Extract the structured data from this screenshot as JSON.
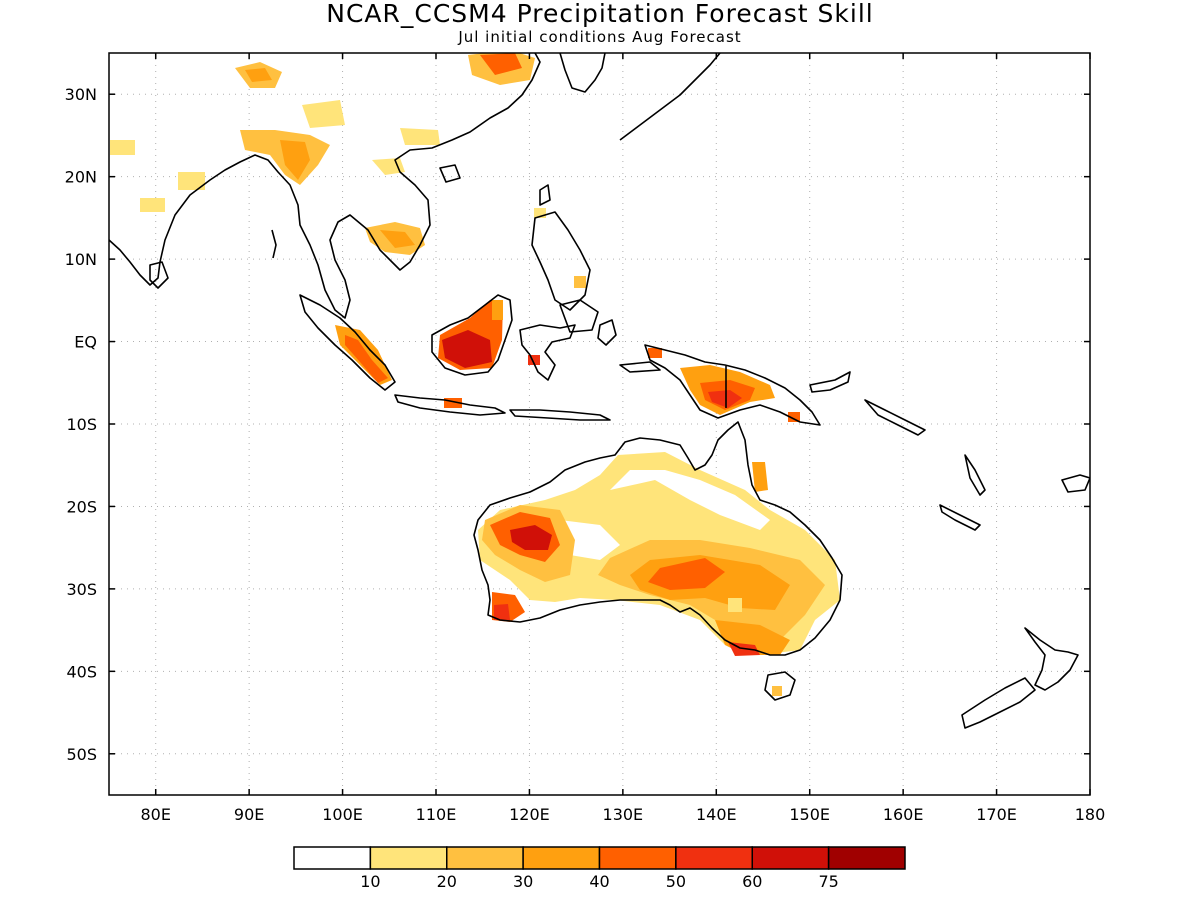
{
  "title": "NCAR_CCSM4 Precipitation Forecast Skill",
  "subtitle": "Jul initial conditions  Aug Forecast",
  "map": {
    "lon_range": [
      75,
      180
    ],
    "lat_range": [
      -55,
      35
    ],
    "lat_labels": [
      "30N",
      "20N",
      "10N",
      "EQ",
      "10S",
      "20S",
      "30S",
      "40S",
      "50S"
    ],
    "lon_labels": [
      "80E",
      "90E",
      "100E",
      "110E",
      "120E",
      "130E",
      "140E",
      "150E",
      "160E",
      "170E",
      "180"
    ],
    "grid": "dotted"
  },
  "legend": {
    "labels": [
      "10",
      "20",
      "30",
      "40",
      "50",
      "60",
      "75"
    ],
    "colors": [
      "#ffffff",
      "#ffe47a",
      "#ffc040",
      "#ffa010",
      "#ff6000",
      "#f03010",
      "#d01008",
      "#a00000"
    ]
  }
}
